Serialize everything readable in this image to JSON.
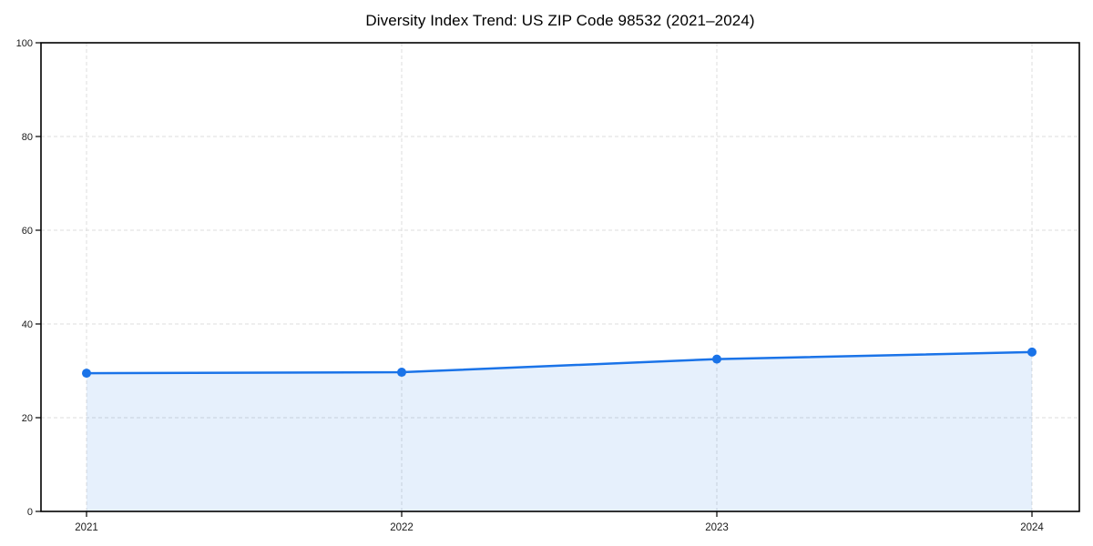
{
  "chart_data": {
    "type": "area",
    "title": "Diversity Index Trend: US ZIP Code 98532 (2021–2024)",
    "x": [
      2021,
      2022,
      2023,
      2024
    ],
    "xtick_labels": [
      "2021",
      "2022",
      "2023",
      "2024"
    ],
    "series": [
      {
        "name": "Diversity Index",
        "values": [
          29.5,
          29.7,
          32.5,
          34.0
        ]
      }
    ],
    "xlabel": "",
    "ylabel": "",
    "ylim": [
      0,
      100
    ],
    "yticks": [
      0,
      20,
      40,
      60,
      80,
      100
    ],
    "ytick_labels": [
      "0",
      "20",
      "40",
      "60",
      "80",
      "100"
    ],
    "grid": true,
    "grid_style": "dashed",
    "legend": false,
    "style": {
      "line_color": "#1a73e8",
      "marker_color": "#1a73e8",
      "fill_color": "#1a73e8",
      "fill_opacity": 0.11,
      "grid_color": "#dcdcdc",
      "axis_color": "#000000",
      "tick_label_color": "#1a1a1a",
      "title_color": "#000000"
    }
  }
}
